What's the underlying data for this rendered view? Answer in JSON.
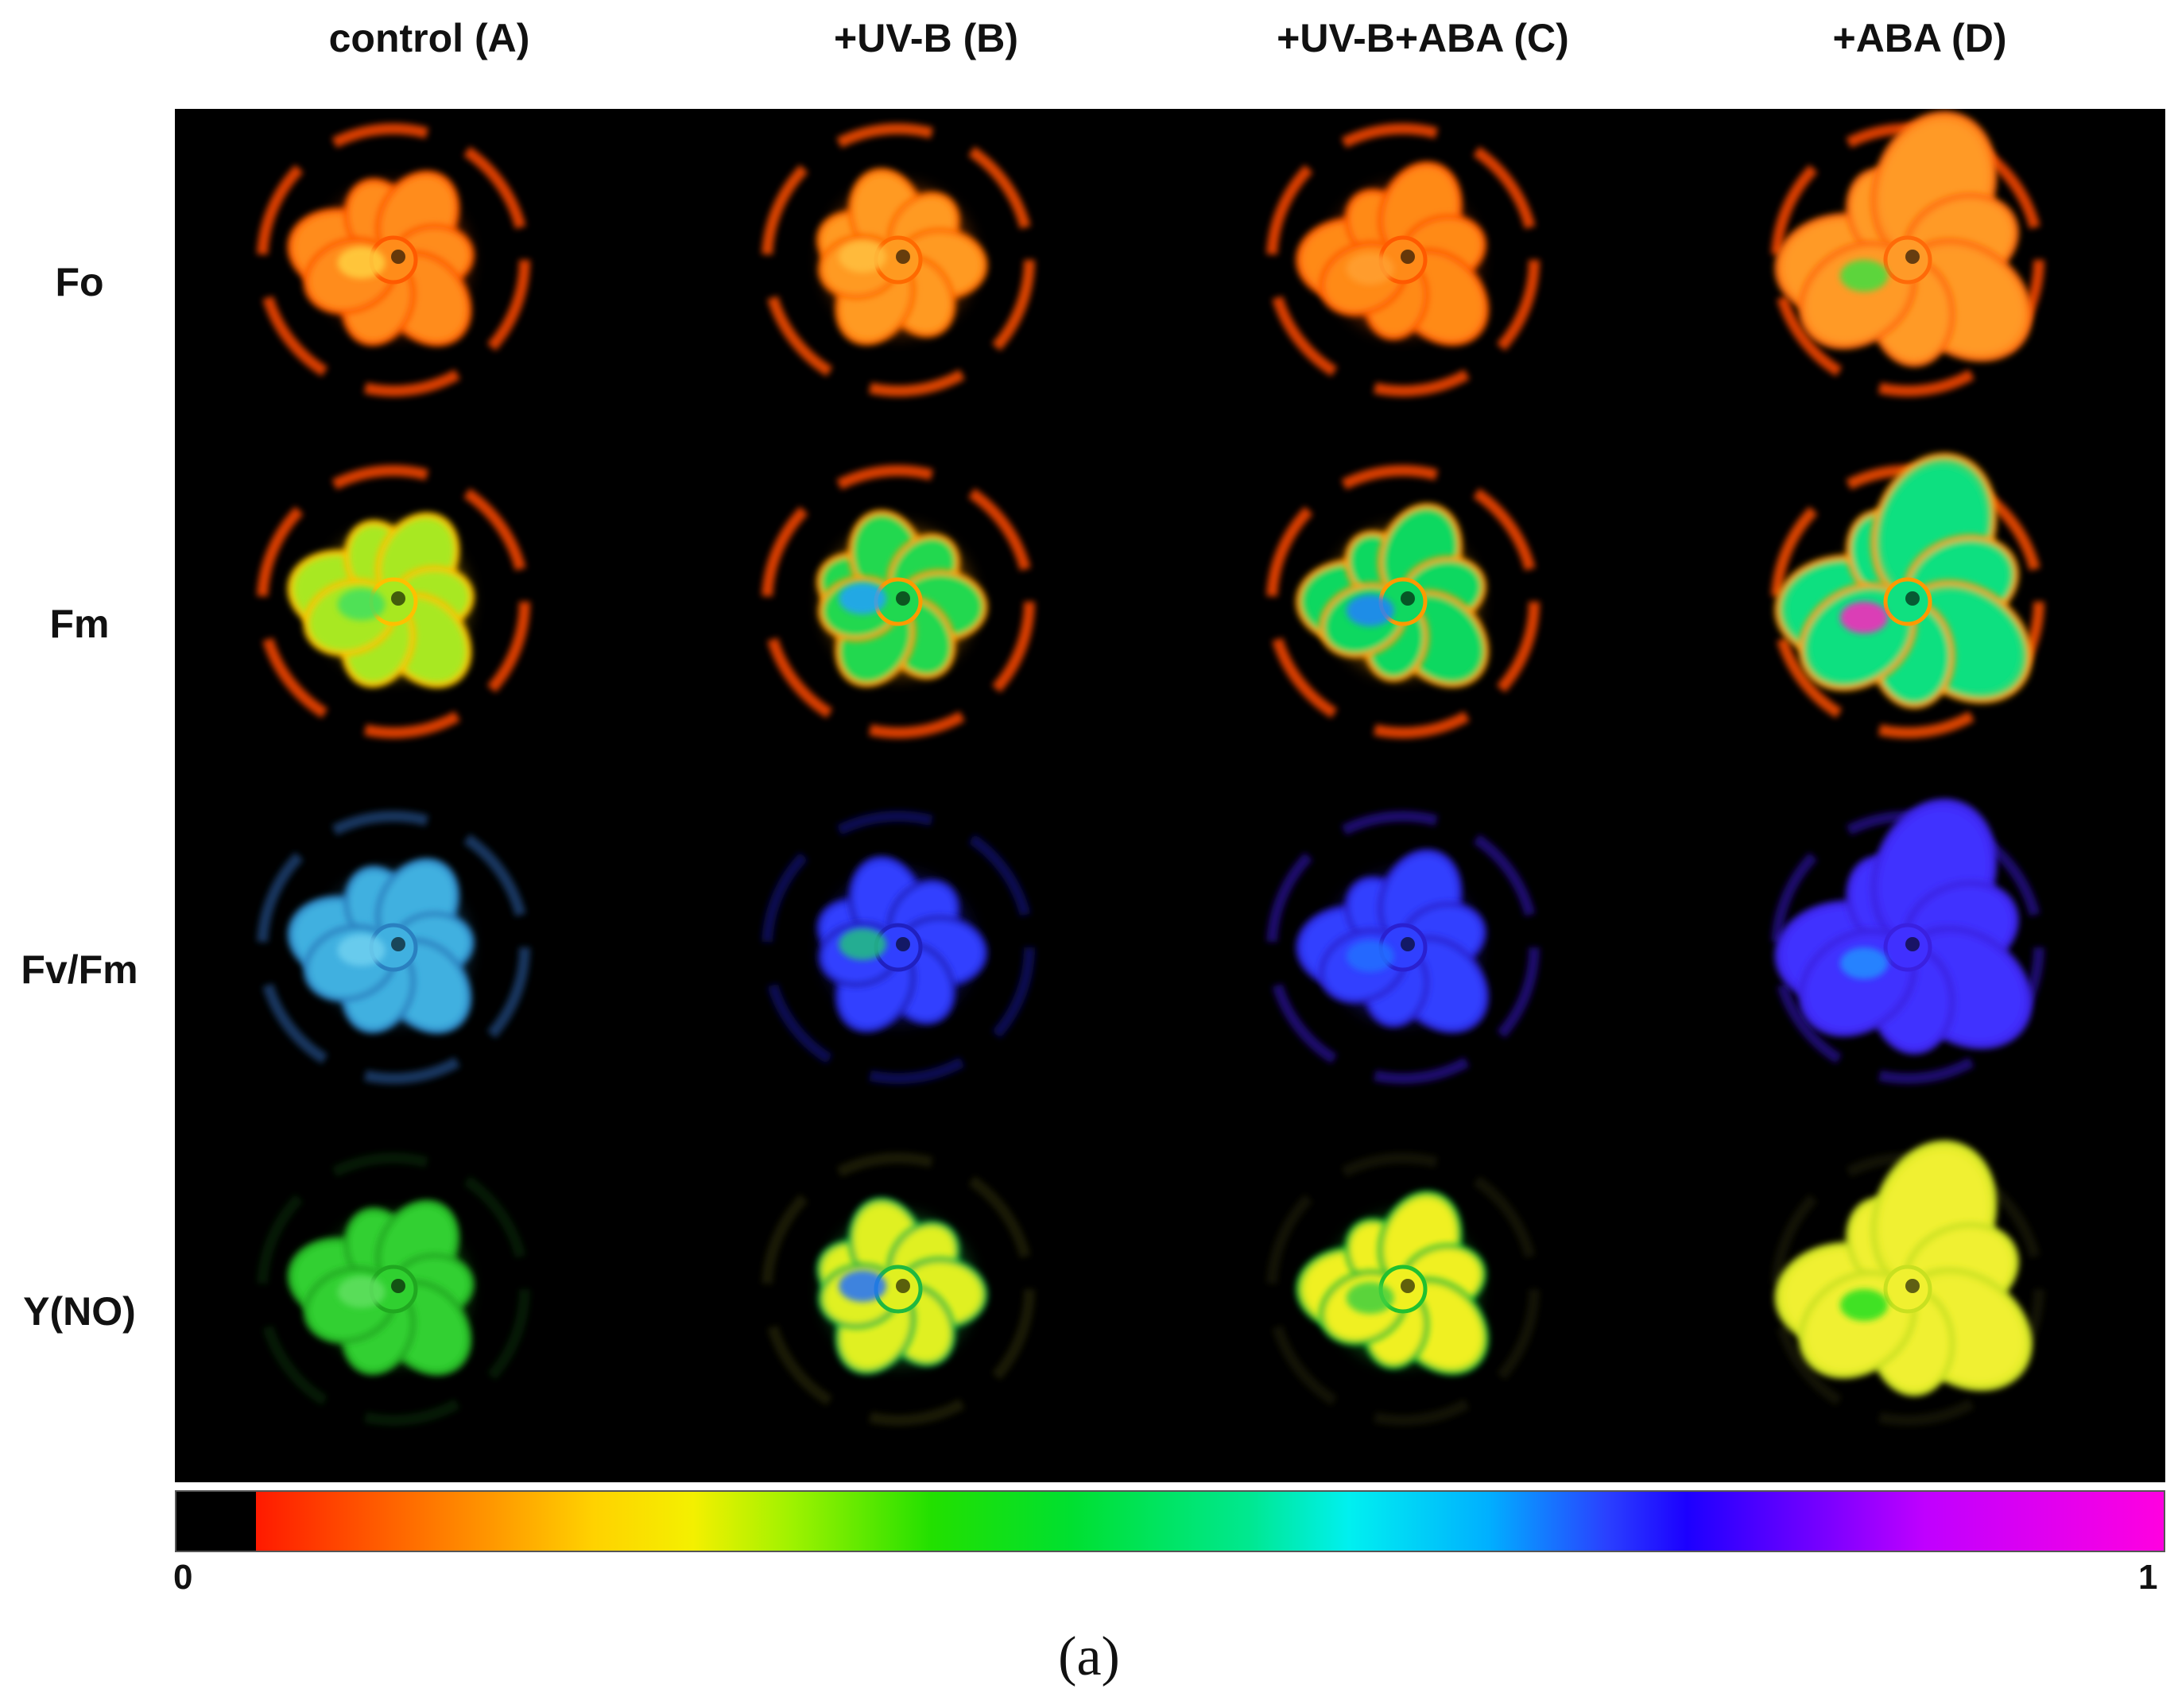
{
  "columns": [
    {
      "label": "control (A)"
    },
    {
      "label": "+UV-B (B)"
    },
    {
      "label": "+UV-B+ABA (C)"
    },
    {
      "label": "+ABA (D)"
    }
  ],
  "rows": [
    {
      "label": "Fo"
    },
    {
      "label": "Fm"
    },
    {
      "label": "Fv/Fm"
    },
    {
      "label": "Y(NO)"
    }
  ],
  "colorscale": {
    "min_label": "0",
    "max_label": "1",
    "colors": [
      "#000000",
      "#ff1a00",
      "#ff9900",
      "#f4f000",
      "#22e000",
      "#00f0f0",
      "#1c00ff",
      "#ff00e0"
    ]
  },
  "caption": "(a)",
  "cell_colors": [
    [
      {
        "inner": "#ff8c1a",
        "outer": "#ff5a00",
        "ring": "#ff4a00",
        "spot": "#ffd040"
      },
      {
        "inner": "#ff9a20",
        "outer": "#ff6a00",
        "ring": "#ff5000",
        "spot": "#ffc040"
      },
      {
        "inner": "#ff8a18",
        "outer": "#ff5a00",
        "ring": "#ff4a00",
        "spot": "#ffa030"
      },
      {
        "inner": "#ff9a28",
        "outer": "#ff6a08",
        "ring": "#ff4a00",
        "spot": "#40e040"
      }
    ],
    [
      {
        "inner": "#a8e820",
        "outer": "#ffc000",
        "ring": "#ff4a00",
        "spot": "#40e060"
      },
      {
        "inner": "#20d850",
        "outer": "#ff9a00",
        "ring": "#ff4a00",
        "spot": "#20a0ff"
      },
      {
        "inner": "#10d860",
        "outer": "#ff9a00",
        "ring": "#ff4a00",
        "spot": "#2080ff"
      },
      {
        "inner": "#10e080",
        "outer": "#ff9a00",
        "ring": "#ff5000",
        "spot": "#ff20c0"
      }
    ],
    [
      {
        "inner": "#40b0e0",
        "outer": "#2a80c0",
        "ring": "#1a4070",
        "spot": "#70d0f0"
      },
      {
        "inner": "#3040ff",
        "outer": "#2020c0",
        "ring": "#101060",
        "spot": "#20c080"
      },
      {
        "inner": "#3040ff",
        "outer": "#2a20d0",
        "ring": "#200880",
        "spot": "#2070ff"
      },
      {
        "inner": "#4030ff",
        "outer": "#3a20e0",
        "ring": "#200880",
        "spot": "#2090ff"
      }
    ],
    [
      {
        "inner": "#30d030",
        "outer": "#20a820",
        "ring": "#0a3a0a",
        "spot": "#60e060"
      },
      {
        "inner": "#e0f020",
        "outer": "#20b840",
        "ring": "#3a3a08",
        "spot": "#2070ff"
      },
      {
        "inner": "#f0f020",
        "outer": "#20c030",
        "ring": "#2a2a08",
        "spot": "#40d040"
      },
      {
        "inner": "#f0f030",
        "outer": "#c8e020",
        "ring": "#2a2a08",
        "spot": "#20e020"
      }
    ]
  ]
}
